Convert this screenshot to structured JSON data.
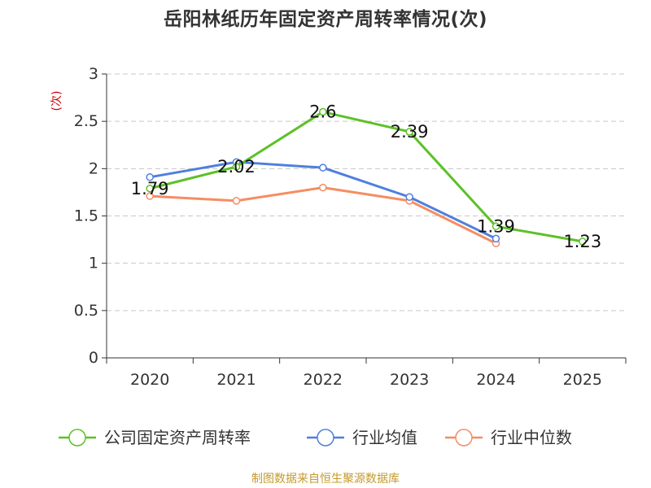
{
  "source_note": "制图数据来自恒生聚源数据库",
  "chart_data": {
    "type": "line",
    "title": "岳阳林纸历年固定资产周转率情况(次)",
    "ylabel": "(次)",
    "xlabel": "",
    "categories": [
      "2020",
      "2021",
      "2022",
      "2023",
      "2024",
      "2025"
    ],
    "ylim": [
      0,
      3
    ],
    "yticks": [
      "0",
      "0.5",
      "1",
      "1.5",
      "2",
      "2.5",
      "3"
    ],
    "grid": true,
    "legend_position": "bottom",
    "series": [
      {
        "name": "公司固定资产周转率",
        "color": "#5cc127",
        "values": [
          1.79,
          2.02,
          2.6,
          2.39,
          1.39,
          1.23
        ],
        "labels": [
          "1.79",
          "2.02",
          "2.6",
          "2.39",
          "1.39",
          "1.23"
        ]
      },
      {
        "name": "行业均值",
        "color": "#4f7fdd",
        "values": [
          1.91,
          2.07,
          2.01,
          1.7,
          1.26,
          null
        ]
      },
      {
        "name": "行业中位数",
        "color": "#f58d63",
        "values": [
          1.71,
          1.66,
          1.8,
          1.66,
          1.21,
          null
        ]
      }
    ]
  }
}
